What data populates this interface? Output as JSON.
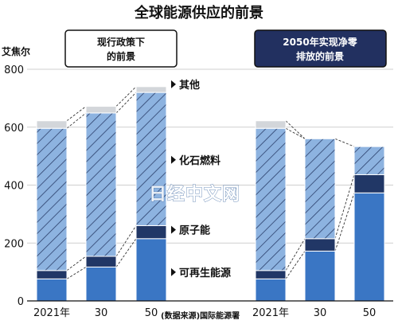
{
  "chart_data": {
    "type": "bar",
    "stacked": true,
    "title": "全球能源供应的前景",
    "ylabel": "艾焦尔",
    "ylim": [
      0,
      800
    ],
    "yticks": [
      0,
      200,
      400,
      600,
      800
    ],
    "groups": [
      {
        "label": "现行政策下\n的前景",
        "categories": [
          "2021年",
          "30",
          "50"
        ],
        "series": [
          {
            "name": "可再生能源",
            "values": [
              76,
              117,
              215
            ]
          },
          {
            "name": "原子能",
            "values": [
              29,
              37,
              45
            ]
          },
          {
            "name": "化石燃料",
            "values": [
              491,
              495,
              460
            ]
          },
          {
            "name": "其他",
            "values": [
              26,
              23,
              20
            ]
          }
        ]
      },
      {
        "label": "2050年实现净零\n排放的前景",
        "categories": [
          "2021年",
          "30",
          "50"
        ],
        "series": [
          {
            "name": "可再生能源",
            "values": [
              76,
              172,
              373
            ]
          },
          {
            "name": "原子能",
            "values": [
              29,
              43,
              63
            ]
          },
          {
            "name": "化石燃料",
            "values": [
              491,
              345,
              97
            ]
          },
          {
            "name": "其他",
            "values": [
              26,
              0,
              0
            ]
          }
        ]
      }
    ],
    "legend": [
      "其他",
      "化石燃料",
      "原子能",
      "可再生能源"
    ],
    "legend_placement": "between panels",
    "source": "(数据来源)国际能源署",
    "watermark": "日经中文网",
    "colors": {
      "可再生能源": "#3a76c4",
      "原子能": "#213766",
      "化石燃料": "#8db3e0",
      "化石燃料_hatch": "#2b3f6b",
      "其他": "#d3d6da",
      "panel_right_box": "#223060"
    }
  }
}
